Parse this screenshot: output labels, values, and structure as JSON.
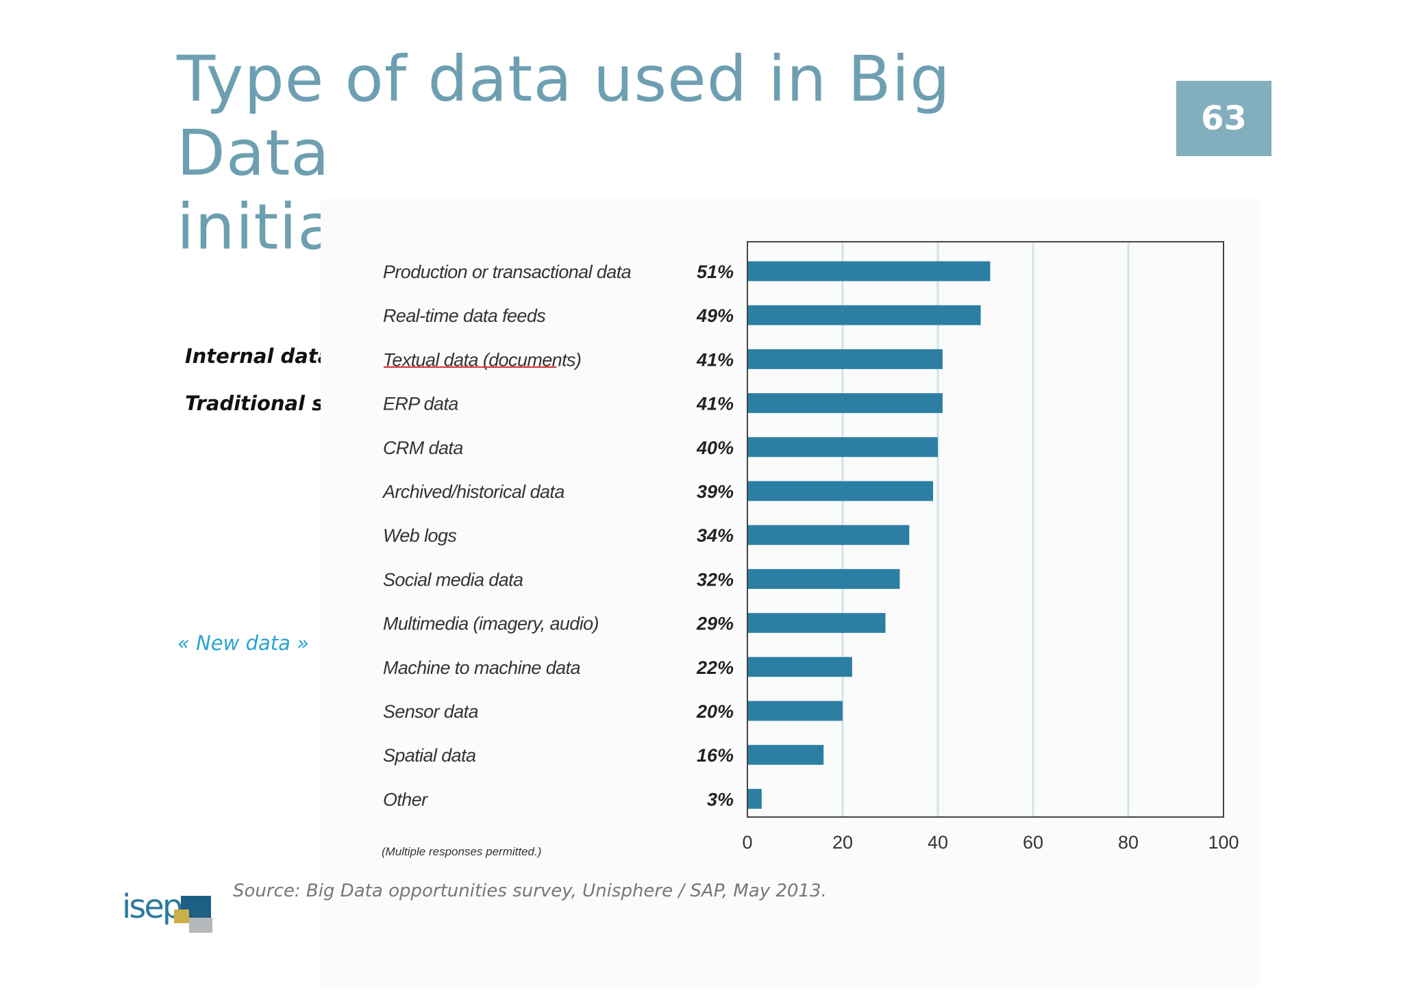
{
  "slide": {
    "title_line1": "Type of data used in Big Data",
    "title_line2": "initiatives",
    "page_number": "63",
    "source": "Source: Big Data opportunities survey, Unisphere / SAP, May 2013.",
    "logo_text": "isep"
  },
  "groups": {
    "internal": "Internal data",
    "traditional": "Traditional sources",
    "new": "« New data »"
  },
  "colors": {
    "bar": "#2c7fa3",
    "title": "#6d9fb1",
    "new_bracket": "#2aa3d0",
    "internal_bracket": "#8cc152",
    "underline": "#e03030"
  },
  "chart_data": {
    "type": "bar",
    "orientation": "horizontal",
    "categories": [
      "Production or transactional data",
      "Real-time data feeds",
      "Textual data (documents)",
      "ERP data",
      "CRM data",
      "Archived/historical data",
      "Web logs",
      "Social media data",
      "Multimedia (imagery, audio)",
      "Machine to machine data",
      "Sensor data",
      "Spatial data",
      "Other"
    ],
    "values": [
      51,
      49,
      41,
      41,
      40,
      39,
      34,
      32,
      29,
      22,
      20,
      16,
      3
    ],
    "value_labels": [
      "51%",
      "49%",
      "41%",
      "41%",
      "40%",
      "39%",
      "34%",
      "32%",
      "29%",
      "22%",
      "20%",
      "16%",
      "3%"
    ],
    "xlim": [
      0,
      100
    ],
    "xticks": [
      "0",
      "20",
      "40",
      "60",
      "80",
      "100"
    ],
    "grid": "vertical",
    "note": "(Multiple responses permitted.)"
  }
}
